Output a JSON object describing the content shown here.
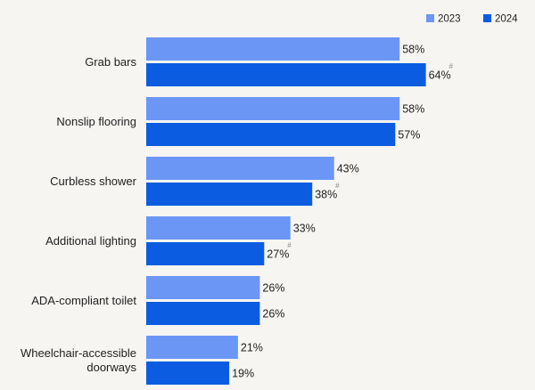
{
  "chart_data": {
    "type": "bar",
    "orientation": "horizontal",
    "categories": [
      "Grab bars",
      "Nonslip flooring",
      "Curbless shower",
      "Additional lighting",
      "ADA-compliant toilet",
      [
        "Wheelchair-accessible",
        "doorways"
      ]
    ],
    "series": [
      {
        "name": "2023",
        "color": "#6b96f6",
        "values": [
          58,
          58,
          43,
          33,
          26,
          21
        ],
        "labels": [
          "58%",
          "58%",
          "43%",
          "33%",
          "26%",
          "21%"
        ],
        "notes": [
          "",
          "",
          "",
          "",
          "",
          ""
        ]
      },
      {
        "name": "2024",
        "color": "#0b5ce0",
        "values": [
          64,
          57,
          38,
          27,
          26,
          19
        ],
        "labels": [
          "64%",
          "57%",
          "38%",
          "27%",
          "26%",
          "19%"
        ],
        "notes": [
          "#",
          "",
          "#",
          "#",
          "",
          ""
        ]
      }
    ],
    "legend_position": "top-right",
    "grid": false,
    "xlim": [
      0,
      65
    ]
  }
}
